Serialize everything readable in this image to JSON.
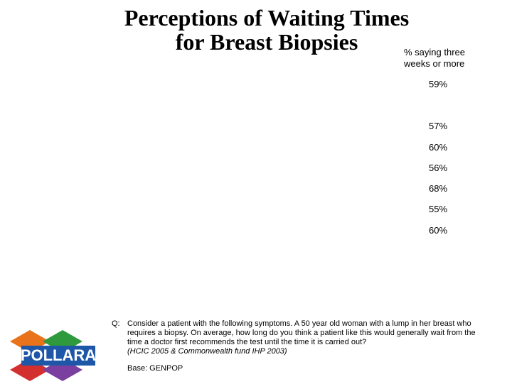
{
  "title": {
    "line1": "Perceptions of Waiting Times",
    "line2": "for Breast Biopsies"
  },
  "column_note": {
    "line1": "% saying three",
    "line2": "weeks or more"
  },
  "chart_data": {
    "type": "table",
    "title": "Perceptions of Waiting Times for Breast Biopsies",
    "column_header": "% saying three weeks or more",
    "values": [
      "59%",
      "57%",
      "60%",
      "56%",
      "68%",
      "55%",
      "60%"
    ]
  },
  "question": {
    "label": "Q:",
    "text": "Consider a patient with the following symptoms.  A 50 year old woman with a lump in her breast who requires a biopsy.  On average, how long do you think a patient like this would generally wait from the time a doctor first recommends the test until the time it is carried out?",
    "source": "(HCIC 2005 & Commonwealth fund IHP 2003)"
  },
  "base": "Base: GENPOP",
  "logo": {
    "text": "POLLARA",
    "colors": [
      "#e8731a",
      "#2f9a3d",
      "#d32f2f",
      "#7b3fa0",
      "#1e56a8"
    ]
  }
}
